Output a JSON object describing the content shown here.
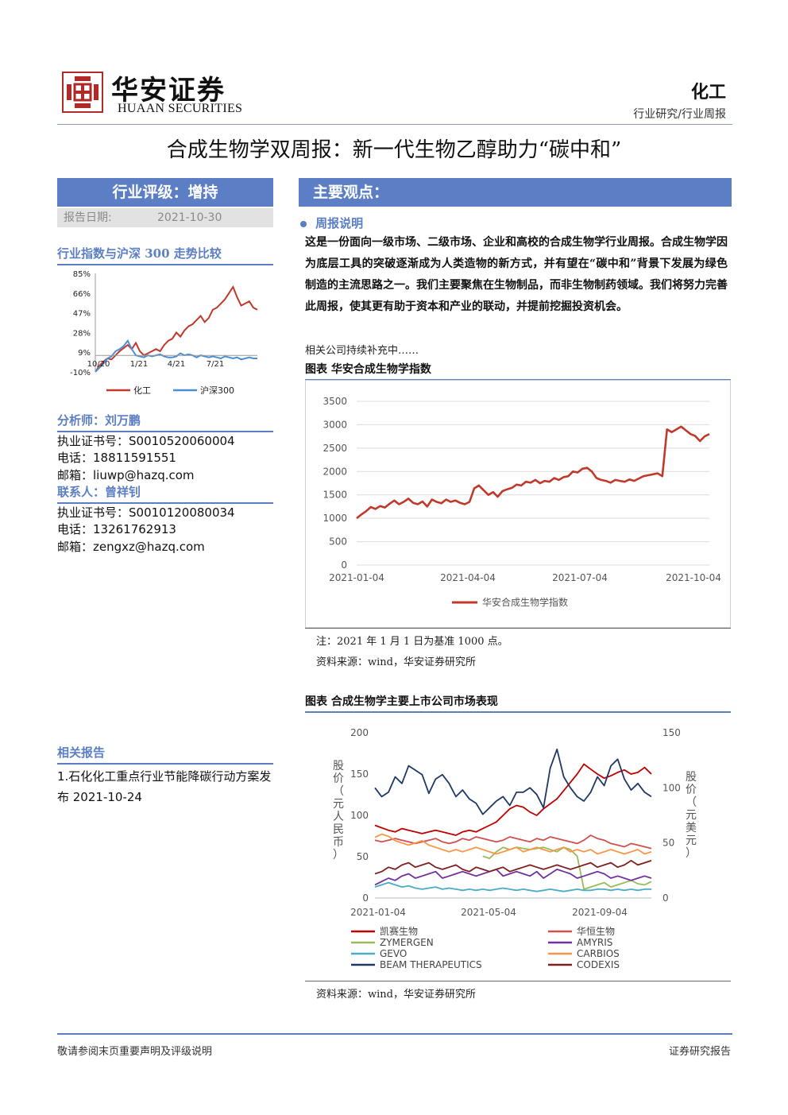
{
  "header": {
    "brand_cn": "华安证券",
    "brand_en": "HUAAN SECURITIES",
    "sector": "化工",
    "subcategory": "行业研究/行业周报"
  },
  "title": "合成生物学双周报：新一代生物乙醇助力“碳中和”",
  "rating": {
    "label": "行业评级：增持",
    "date_label": "报告日期:",
    "date_value": "2021-10-30"
  },
  "main": {
    "heading": "主要观点：",
    "sub_heading": "周报说明",
    "paragraph": "这是一份面向一级市场、二级市场、企业和高校的合成生物学行业周报。合成生物学因为底层工具的突破逐渐成为人类造物的新方式，并有望在“碳中和”背景下发展为绿色制造的主流思路之一。我们主要聚焦在生物制品，而非生物制药领域。我们将努力完善此周报，使其更有助于资本和产业的联动，并提前挖掘投资机会。",
    "note": "相关公司持续补充中……"
  },
  "sidebar": {
    "index_title": "行业指数与沪深 300 走势比较",
    "analyst_title": "分析师：刘万鹏",
    "analyst": {
      "cert": "执业证书号：S0010520060004",
      "phone": "电话：18811591551",
      "email": "邮箱：liuwp@hazq.com"
    },
    "contact_title": "联系人：曾祥钊",
    "contact": {
      "cert": "执业证书号：S0010120080034",
      "phone": "电话：13261762913",
      "email": "邮箱：zengxz@hazq.com"
    },
    "related_title": "相关报告",
    "related_item": "1.石化化工重点行业节能降碳行动方案发布 2021-10-24"
  },
  "figure1": {
    "heading": "图表  华安合成生物学指数",
    "note": "注：2021 年 1 月 1 日为基准 1000 点。",
    "source": "资料来源：wind，华安证券研究所"
  },
  "figure2": {
    "heading": "图表  合成生物学主要上市公司市场表现",
    "source": "资料来源：wind，华安证券研究所",
    "left_axis_label": "股价（元人民币）",
    "right_axis_label": "股价（元美元）"
  },
  "footer": {
    "left": "敬请参阅末页重要声明及评级说明",
    "right": "证券研究报告"
  },
  "colors": {
    "brand": "#5b7ec4",
    "chemical": "#c0392b",
    "csi300": "#4a8fd6",
    "logo": "#b02a2a"
  },
  "chart_data": [
    {
      "type": "line",
      "title": "",
      "x_ticks": [
        "10/20",
        "1/21",
        "4/21",
        "7/21"
      ],
      "y_ticks": [
        "85%",
        "66%",
        "47%",
        "28%",
        "9%",
        "-10%"
      ],
      "ylim": [
        -10,
        85
      ],
      "legend_position": "bottom",
      "series": [
        {
          "name": "化工",
          "color": "#c0392b",
          "values": [
            -10,
            -4,
            0,
            3,
            2,
            6,
            10,
            13,
            16,
            12,
            18,
            10,
            6,
            8,
            10,
            12,
            10,
            16,
            20,
            22,
            28,
            24,
            30,
            34,
            36,
            40,
            44,
            38,
            42,
            50,
            52,
            56,
            60,
            66,
            72,
            62,
            54,
            56,
            58,
            52,
            50
          ]
        },
        {
          "name": "沪深300",
          "color": "#4a8fd6",
          "values": [
            -10,
            -6,
            -2,
            3,
            5,
            10,
            12,
            15,
            20,
            12,
            6,
            5,
            4,
            6,
            5,
            6,
            7,
            5,
            4,
            4,
            5,
            8,
            6,
            7,
            6,
            4,
            6,
            5,
            4,
            5,
            4,
            3,
            5,
            4,
            3,
            4,
            2,
            3,
            4,
            3,
            3
          ]
        }
      ]
    },
    {
      "type": "line",
      "title": "",
      "x_ticks": [
        "2021-01-04",
        "2021-04-04",
        "2021-07-04",
        "2021-10-04"
      ],
      "y_ticks": [
        "0",
        "500",
        "1000",
        "1500",
        "2000",
        "2500",
        "3000",
        "3500"
      ],
      "ylim": [
        0,
        3500
      ],
      "legend_position": "bottom",
      "series": [
        {
          "name": "华安合成生物学指数",
          "color": "#c0392b",
          "values": [
            1000,
            1080,
            1150,
            1240,
            1200,
            1260,
            1230,
            1310,
            1380,
            1300,
            1350,
            1420,
            1330,
            1300,
            1360,
            1250,
            1400,
            1350,
            1320,
            1400,
            1350,
            1380,
            1330,
            1300,
            1350,
            1640,
            1700,
            1600,
            1500,
            1560,
            1460,
            1580,
            1620,
            1650,
            1720,
            1700,
            1780,
            1760,
            1820,
            1750,
            1800,
            1780,
            1860,
            1820,
            1880,
            1900,
            2000,
            1980,
            2060,
            2080,
            2000,
            1860,
            1820,
            1800,
            1760,
            1820,
            1800,
            1780,
            1830,
            1800,
            1850,
            1900,
            1920,
            1940,
            1960,
            1900,
            2900,
            2840,
            2900,
            2960,
            2880,
            2800,
            2760,
            2650,
            2750,
            2800
          ]
        }
      ]
    },
    {
      "type": "line",
      "title": "",
      "x_ticks": [
        "2021-01-04",
        "2021-05-04",
        "2021-09-04"
      ],
      "y_ticks_left": [
        "0",
        "50",
        "100",
        "150",
        "200"
      ],
      "y_ticks_right": [
        "0",
        "50",
        "100",
        "150"
      ],
      "ylim_left": [
        0,
        200
      ],
      "ylim_right": [
        0,
        150
      ],
      "legend_position": "bottom",
      "series": [
        {
          "name": "凯赛生物",
          "color": "#c00000",
          "axis": "left",
          "values": [
            88,
            85,
            82,
            80,
            84,
            82,
            80,
            78,
            80,
            82,
            80,
            78,
            76,
            80,
            82,
            80,
            84,
            88,
            92,
            100,
            108,
            112,
            110,
            104,
            100,
            108,
            114,
            120,
            130,
            140,
            150,
            162,
            156,
            150,
            145,
            148,
            152,
            155,
            150,
            152,
            158,
            150
          ]
        },
        {
          "name": "华恒生物",
          "color": "#d05050",
          "axis": "left",
          "values": [
            70,
            68,
            70,
            72,
            70,
            68,
            66,
            68,
            70,
            72,
            68,
            66,
            68,
            72,
            70,
            74,
            72,
            70,
            68,
            70,
            74,
            72,
            70,
            68,
            72,
            70,
            74,
            72,
            70,
            68,
            66,
            70,
            76,
            72,
            70,
            66,
            64,
            62,
            66,
            64,
            62,
            60
          ]
        },
        {
          "name": "ZYMERGEN",
          "color": "#9bbb59",
          "axis": "right",
          "values": [
            null,
            null,
            null,
            null,
            null,
            null,
            null,
            null,
            null,
            null,
            null,
            null,
            null,
            null,
            null,
            null,
            38,
            36,
            42,
            46,
            44,
            46,
            45,
            44,
            45,
            46,
            44,
            42,
            46,
            44,
            38,
            8,
            10,
            12,
            14,
            10,
            12,
            14,
            16,
            13,
            12,
            15
          ]
        },
        {
          "name": "AMYRIS",
          "color": "#7030a0",
          "axis": "right",
          "values": [
            12,
            15,
            18,
            16,
            20,
            22,
            18,
            20,
            22,
            24,
            18,
            20,
            22,
            24,
            22,
            20,
            22,
            24,
            26,
            20,
            22,
            24,
            22,
            20,
            24,
            18,
            22,
            26,
            24,
            22,
            18,
            20,
            22,
            24,
            22,
            18,
            20,
            18,
            16,
            18,
            20,
            18
          ]
        },
        {
          "name": "GEVO",
          "color": "#4bacc6",
          "axis": "right",
          "values": [
            10,
            12,
            14,
            12,
            10,
            11,
            9,
            8,
            9,
            10,
            8,
            9,
            8,
            7,
            8,
            7,
            8,
            7,
            8,
            9,
            8,
            7,
            8,
            7,
            6,
            7,
            8,
            7,
            6,
            7,
            8,
            7,
            7,
            8,
            8,
            7,
            8,
            7,
            8,
            7,
            8,
            8
          ]
        },
        {
          "name": "CARBIOS",
          "color": "#f79646",
          "axis": "right",
          "values": [
            55,
            58,
            56,
            52,
            50,
            48,
            50,
            52,
            48,
            46,
            44,
            42,
            44,
            42,
            44,
            46,
            44,
            42,
            40,
            42,
            44,
            46,
            42,
            44,
            46,
            44,
            42,
            44,
            46,
            42,
            44,
            42,
            44,
            40,
            42,
            44,
            42,
            40,
            42,
            44,
            40,
            42
          ]
        },
        {
          "name": "BEAM THERAPEUTICS",
          "color": "#1f3864",
          "axis": "right",
          "values": [
            100,
            92,
            96,
            110,
            104,
            120,
            116,
            112,
            95,
            108,
            112,
            104,
            92,
            98,
            90,
            86,
            76,
            82,
            88,
            92,
            84,
            96,
            96,
            100,
            94,
            82,
            118,
            135,
            110,
            100,
            92,
            88,
            96,
            110,
            102,
            120,
            126,
            108,
            98,
            104,
            96,
            92
          ]
        },
        {
          "name": "CODEXIS",
          "color": "#7f1f1f",
          "axis": "right",
          "values": [
            22,
            24,
            28,
            26,
            30,
            32,
            28,
            30,
            32,
            28,
            26,
            28,
            30,
            26,
            24,
            28,
            26,
            24,
            26,
            28,
            24,
            26,
            28,
            30,
            28,
            26,
            28,
            30,
            28,
            26,
            28,
            30,
            32,
            28,
            30,
            32,
            28,
            30,
            34,
            30,
            32,
            34
          ]
        }
      ]
    }
  ]
}
